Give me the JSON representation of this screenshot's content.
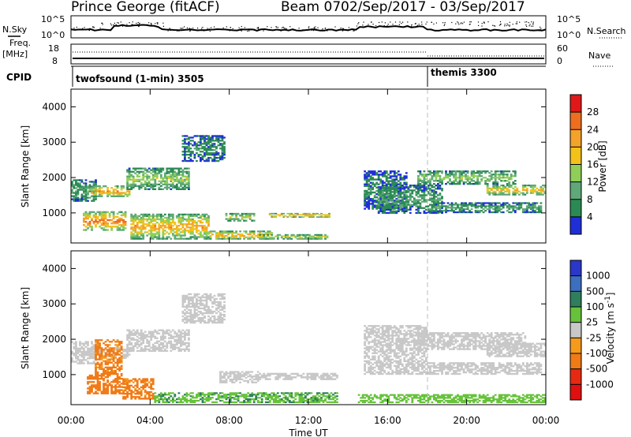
{
  "header": {
    "site": "Prince George (fitACF)",
    "beam_label": "Beam 07",
    "date_range": "02/Sep/2017 - 03/Sep/2017"
  },
  "noise_panel": {
    "left_label": "N.Sky",
    "right_label": "N.Search",
    "left_ticks": [
      "10^5",
      "10^0"
    ],
    "right_ticks": [
      "10^5",
      "10^0"
    ]
  },
  "freq_panel": {
    "left_label_1": "Freq.",
    "left_label_2": "[MHz]",
    "right_label": "Nave",
    "left_ticks": [
      "18",
      "8"
    ],
    "right_ticks": [
      "60",
      "0"
    ]
  },
  "cpid_panel": {
    "label": "CPID",
    "programs": [
      {
        "name": "twofsound (1-min) 3505",
        "start": "00:00"
      },
      {
        "name": "themis 3300",
        "start": "18:00"
      }
    ]
  },
  "time_axis": {
    "title": "Time UT",
    "ticks": [
      "00:00",
      "04:00",
      "08:00",
      "12:00",
      "16:00",
      "20:00",
      "00:00"
    ]
  },
  "colors": {
    "power": [
      "#1e2fd8",
      "#2b8a54",
      "#5fa878",
      "#8fcf58",
      "#f2c21a",
      "#f3a22a",
      "#ee6e20",
      "#e01818"
    ],
    "velocity": [
      "#2a37c9",
      "#3c6fbf",
      "#2f7e5e",
      "#66c23a",
      "#c8c8c8",
      "#f59a1b",
      "#f07a16",
      "#e62a12",
      "#e01010"
    ]
  },
  "chart_data": [
    {
      "type": "heatmap",
      "title": "",
      "xlabel": "Time UT",
      "ylabel": "Slant Range [km]",
      "x_unit": "hours UT from 00:00 02/Sep/2017",
      "xlim": [
        0,
        24
      ],
      "ylim": [
        150,
        4500
      ],
      "yticks": [
        1000,
        2000,
        3000,
        4000
      ],
      "colorbar": {
        "label": "Power [dB]",
        "ticks": [
          4,
          8,
          12,
          16,
          20,
          24,
          28
        ],
        "range": [
          0,
          32
        ]
      },
      "regions": [
        {
          "t0": 0.0,
          "t1": 1.3,
          "r0": 1320,
          "r1": 1950,
          "v": 9
        },
        {
          "t0": 1.0,
          "t1": 3.0,
          "r0": 1450,
          "r1": 1780,
          "v": 22
        },
        {
          "t0": 2.8,
          "t1": 6.0,
          "r0": 1650,
          "r1": 2280,
          "v": 13
        },
        {
          "t0": 5.6,
          "t1": 7.8,
          "r0": 2450,
          "r1": 3200,
          "v": 6
        },
        {
          "t0": 0.6,
          "t1": 2.8,
          "r0": 500,
          "r1": 1050,
          "v": 24
        },
        {
          "t0": 3.0,
          "t1": 7.0,
          "r0": 250,
          "r1": 980,
          "v": 20
        },
        {
          "t0": 7.0,
          "t1": 10.2,
          "r0": 250,
          "r1": 500,
          "v": 22
        },
        {
          "t0": 7.8,
          "t1": 9.3,
          "r0": 760,
          "r1": 1000,
          "v": 17
        },
        {
          "t0": 10.0,
          "t1": 13.1,
          "r0": 870,
          "r1": 1000,
          "v": 24
        },
        {
          "t0": 9.5,
          "t1": 13.0,
          "r0": 250,
          "r1": 400,
          "v": 18
        },
        {
          "t0": 14.8,
          "t1": 17.0,
          "r0": 1100,
          "r1": 2200,
          "v": 6
        },
        {
          "t0": 15.5,
          "t1": 18.8,
          "r0": 980,
          "r1": 1800,
          "v": 8
        },
        {
          "t0": 17.5,
          "t1": 22.5,
          "r0": 1800,
          "r1": 2200,
          "v": 13
        },
        {
          "t0": 18.0,
          "t1": 23.8,
          "r0": 1000,
          "r1": 1300,
          "v": 9
        },
        {
          "t0": 21.0,
          "t1": 24.0,
          "r0": 1500,
          "r1": 1800,
          "v": 19
        }
      ]
    },
    {
      "type": "heatmap",
      "title": "",
      "xlabel": "Time UT",
      "ylabel": "Slant Range [km]",
      "x_unit": "hours UT from 00:00 02/Sep/2017",
      "xlim": [
        0,
        24
      ],
      "ylim": [
        150,
        4500
      ],
      "yticks": [
        1000,
        2000,
        3000,
        4000
      ],
      "colorbar": {
        "label": "Velocity [m s^-1]",
        "ticks": [
          1000,
          500,
          100,
          25,
          -25,
          -100,
          -500,
          -1000
        ]
      },
      "regions": [
        {
          "t0": 0.0,
          "t1": 1.3,
          "r0": 1300,
          "r1": 1950,
          "v": 0
        },
        {
          "t0": 1.0,
          "t1": 3.0,
          "r0": 1450,
          "r1": 1780,
          "v": 0
        },
        {
          "t0": 1.2,
          "t1": 2.6,
          "r0": 1000,
          "r1": 2000,
          "v": -150
        },
        {
          "t0": 2.8,
          "t1": 6.0,
          "r0": 1650,
          "r1": 2280,
          "v": 0
        },
        {
          "t0": 5.6,
          "t1": 7.8,
          "r0": 2450,
          "r1": 3300,
          "v": 0
        },
        {
          "t0": 0.8,
          "t1": 2.6,
          "r0": 450,
          "r1": 1000,
          "v": -250
        },
        {
          "t0": 2.6,
          "t1": 4.2,
          "r0": 300,
          "r1": 900,
          "v": -150
        },
        {
          "t0": 4.2,
          "t1": 13.5,
          "r0": 200,
          "r1": 500,
          "v": 80
        },
        {
          "t0": 7.5,
          "t1": 9.5,
          "r0": 760,
          "r1": 1100,
          "v": 0
        },
        {
          "t0": 9.5,
          "t1": 13.5,
          "r0": 850,
          "r1": 1050,
          "v": 0
        },
        {
          "t0": 14.8,
          "t1": 18.0,
          "r0": 1000,
          "r1": 2400,
          "v": 0
        },
        {
          "t0": 18.0,
          "t1": 23.8,
          "r0": 1000,
          "r1": 1350,
          "v": 0
        },
        {
          "t0": 17.5,
          "t1": 23.0,
          "r0": 1700,
          "r1": 2200,
          "v": 0
        },
        {
          "t0": 21.0,
          "t1": 24.0,
          "r0": 1500,
          "r1": 1900,
          "v": 0
        },
        {
          "t0": 14.5,
          "t1": 24.0,
          "r0": 200,
          "r1": 450,
          "v": 60
        }
      ]
    }
  ]
}
